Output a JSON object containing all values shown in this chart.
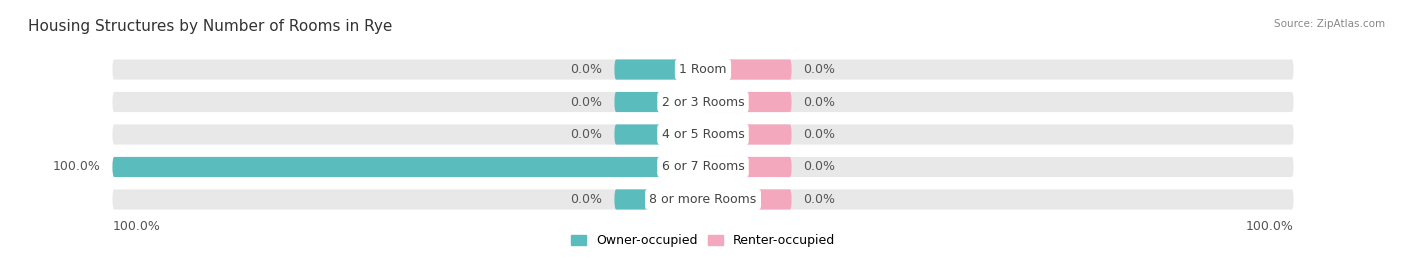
{
  "title": "Housing Structures by Number of Rooms in Rye",
  "source": "Source: ZipAtlas.com",
  "categories": [
    "1 Room",
    "2 or 3 Rooms",
    "4 or 5 Rooms",
    "6 or 7 Rooms",
    "8 or more Rooms"
  ],
  "owner_values": [
    0.0,
    0.0,
    0.0,
    100.0,
    0.0
  ],
  "renter_values": [
    0.0,
    0.0,
    0.0,
    0.0,
    0.0
  ],
  "owner_color": "#5bbcbd",
  "renter_color": "#f4a8be",
  "bar_bg_color": "#e8e8e8",
  "bar_height": 0.62,
  "xlim": 100,
  "min_bar_display": 15,
  "axis_label_left": "100.0%",
  "axis_label_right": "100.0%",
  "legend_owner": "Owner-occupied",
  "legend_renter": "Renter-occupied",
  "bg_color": "#ffffff",
  "title_fontsize": 11,
  "label_fontsize": 9,
  "category_fontsize": 9,
  "tick_fontsize": 9,
  "label_color": "#555555",
  "cat_label_color": "#444444"
}
